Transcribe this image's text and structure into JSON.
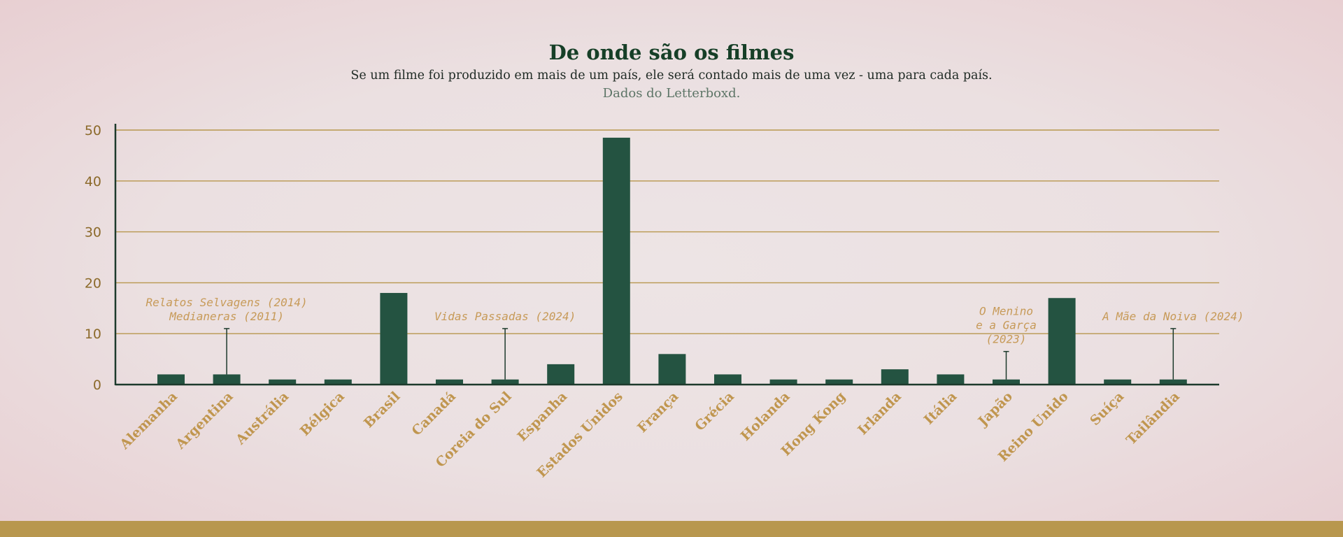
{
  "colors": {
    "bar": "#245341",
    "gridline": "#b8974e",
    "axis": "#1d3a2c",
    "y_tick_label": "#8c6a2b",
    "x_tick_label": "#c0964f",
    "annotation": "#c79a58",
    "title": "#163f27",
    "subtitle": "#1f2a24",
    "source": "#5d7567",
    "band": "#b8974e"
  },
  "chart_data": {
    "type": "bar",
    "title": "De onde são os filmes",
    "subtitle": "Se um filme foi produzido em mais de um país, ele será contado mais de uma vez - uma para cada país.",
    "source": "Dados do Letterboxd.",
    "xlabel": "",
    "ylabel": "",
    "ylim": [
      0,
      50
    ],
    "yticks": [
      0,
      10,
      20,
      30,
      40,
      50
    ],
    "grid": true,
    "categories": [
      "Alemanha",
      "Argentina",
      "Austrália",
      "Bélgica",
      "Brasil",
      "Canadá",
      "Coreia do Sul",
      "Espanha",
      "Estados Unidos",
      "França",
      "Grécia",
      "Holanda",
      "Hong Kong",
      "Irlanda",
      "Itália",
      "Japão",
      "Reino Unido",
      "Suíça",
      "Tailândia"
    ],
    "values": [
      2,
      2,
      1,
      1,
      18,
      1,
      1,
      4,
      48.5,
      6,
      2,
      1,
      1,
      3,
      2,
      1,
      17,
      1,
      1
    ],
    "annotations": [
      {
        "category": "Argentina",
        "lines": [
          "Relatos Selvagens (2014)",
          "Medianeras (2011)"
        ],
        "top": 11
      },
      {
        "category": "Coreia do Sul",
        "lines": [
          "Vidas Passadas (2024)"
        ],
        "top": 11
      },
      {
        "category": "Japão",
        "lines": [
          "O Menino",
          "e a Garça",
          "(2023)"
        ],
        "top": 6.5
      },
      {
        "category": "Tailândia",
        "lines": [
          "A Mãe da Noiva (2024)"
        ],
        "top": 11
      }
    ]
  }
}
